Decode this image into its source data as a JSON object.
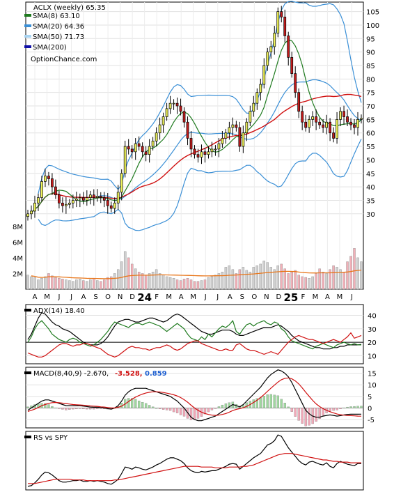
{
  "chart_data": [
    {
      "type": "candlestick",
      "panel": "price",
      "ticker": "ACLX",
      "title": "ACLX (weekly) 65.35",
      "legend": [
        {
          "label": "SMA(8) 63.10",
          "color": "#1e7a1e"
        },
        {
          "label": "SMA(20) 64.36",
          "color": "#3a8fd6"
        },
        {
          "label": "SMA(50) 71.73",
          "color": "#a8d4f2"
        },
        {
          "label": "SMA(200)",
          "color": "#1010a8"
        }
      ],
      "source": "OptionChance.com",
      "ylim": [
        24,
        108
      ],
      "yticks": [
        30,
        35,
        40,
        45,
        50,
        55,
        60,
        65,
        70,
        75,
        80,
        85,
        90,
        95,
        100,
        105
      ],
      "x_labels": [
        "A",
        "M",
        "J",
        "J",
        "A",
        "S",
        "O",
        "N",
        "D",
        "24",
        "F",
        "M",
        "A",
        "M",
        "J",
        "J",
        "A",
        "S",
        "O",
        "N",
        "D",
        "25",
        "F",
        "M",
        "A",
        "M",
        "J"
      ],
      "close": [
        30,
        31,
        34,
        36,
        42,
        44,
        43,
        40,
        37,
        34,
        33,
        33.5,
        34,
        35,
        35.5,
        36,
        35,
        36,
        37,
        36,
        36.5,
        36,
        35,
        33,
        32,
        34,
        38,
        45,
        55,
        54,
        53,
        56,
        55,
        53,
        52,
        55,
        57,
        60,
        63,
        66,
        69,
        71,
        71,
        70,
        68,
        64,
        58,
        54,
        52,
        51,
        53,
        52,
        53,
        54,
        54,
        56,
        58,
        60,
        62,
        63,
        62,
        55,
        60,
        64,
        68,
        71,
        75,
        78,
        85,
        90,
        92,
        97,
        105,
        103,
        96,
        88,
        82,
        75,
        68,
        64,
        62,
        65,
        66,
        64,
        63,
        62,
        64,
        60,
        58,
        65,
        68,
        66,
        64,
        63,
        62,
        65,
        65.35
      ],
      "volume_m": [
        1.8,
        1.6,
        1.5,
        1.2,
        1.4,
        1.6,
        2.0,
        1.7,
        1.5,
        1.4,
        1.3,
        1.2,
        1.1,
        1.0,
        1.2,
        1.3,
        1.1,
        1.0,
        1.2,
        1.4,
        1.1,
        1.0,
        1.2,
        1.5,
        1.6,
        2.0,
        2.5,
        3.5,
        4.8,
        4.0,
        3.2,
        2.6,
        2.2,
        2.0,
        1.8,
        2.0,
        2.2,
        2.5,
        2.0,
        1.8,
        1.6,
        1.5,
        1.4,
        1.2,
        1.1,
        1.3,
        1.4,
        1.2,
        1.0,
        1.0,
        1.1,
        1.2,
        1.5,
        1.6,
        1.8,
        2.0,
        2.2,
        2.8,
        3.0,
        2.5,
        2.0,
        2.5,
        2.8,
        2.4,
        2.2,
        2.8,
        3.0,
        3.2,
        3.6,
        3.4,
        2.8,
        2.5,
        3.0,
        3.2,
        2.6,
        2.0,
        2.2,
        2.4,
        1.8,
        1.6,
        1.5,
        1.4,
        1.6,
        2.0,
        2.6,
        2.2,
        2.0,
        2.5,
        3.0,
        2.8,
        2.5,
        2.2,
        3.5,
        4.2,
        5.2,
        4.0,
        3.5
      ],
      "volume_yticks": [
        "2M",
        "4M",
        "6M",
        "8M"
      ],
      "volume_ylim": [
        0,
        8.6
      ]
    },
    {
      "type": "line",
      "panel": "adx",
      "label": "ADX(14) 18.40",
      "ylim": [
        5,
        47
      ],
      "yticks": [
        10,
        20,
        30,
        40
      ],
      "series": [
        {
          "color": "#000000",
          "values": [
            22,
            26,
            32,
            38,
            42,
            41,
            38,
            35,
            33,
            32,
            30,
            29,
            28,
            26,
            24,
            22,
            20,
            19,
            18,
            18,
            18,
            19,
            21,
            24,
            28,
            32,
            35,
            36,
            37,
            37,
            36,
            35,
            35,
            36,
            37,
            38,
            38,
            37,
            36,
            35,
            36,
            38,
            40,
            41,
            40,
            38,
            36,
            34,
            32,
            30,
            28,
            27,
            26,
            26,
            27,
            28,
            29,
            29,
            29,
            28,
            26,
            25,
            25,
            26,
            27,
            28,
            29,
            30,
            31,
            31,
            31,
            32,
            33,
            32,
            30,
            28,
            25,
            23,
            21,
            20,
            19,
            18,
            17,
            16,
            16,
            15,
            15,
            15,
            16,
            16,
            17,
            17,
            18,
            18,
            18,
            18,
            18.4
          ]
        },
        {
          "color": "#1e7a1e",
          "values": [
            20,
            24,
            30,
            34,
            36,
            33,
            30,
            26,
            24,
            22,
            21,
            20,
            22,
            23,
            22,
            20,
            19,
            18,
            17,
            18,
            20,
            22,
            25,
            28,
            32,
            35,
            34,
            33,
            32,
            31,
            33,
            34,
            34,
            33,
            34,
            35,
            34,
            33,
            32,
            30,
            28,
            30,
            32,
            34,
            32,
            30,
            26,
            23,
            22,
            21,
            24,
            22,
            26,
            24,
            27,
            30,
            32,
            31,
            33,
            36,
            28,
            26,
            30,
            33,
            34,
            32,
            34,
            35,
            36,
            34,
            33,
            35,
            34,
            30,
            28,
            24,
            21,
            20,
            19,
            18,
            17,
            16,
            15,
            17,
            18,
            19,
            18,
            17,
            16,
            18,
            19,
            20,
            19,
            18,
            19,
            18,
            18
          ]
        },
        {
          "color": "#d01010",
          "values": [
            12,
            11,
            10,
            9,
            9,
            10,
            12,
            14,
            16,
            18,
            19,
            19,
            18,
            17,
            18,
            18,
            19,
            19,
            18,
            17,
            16,
            15,
            13,
            11,
            10,
            9,
            10,
            12,
            14,
            16,
            17,
            16,
            16,
            15,
            15,
            14,
            15,
            16,
            16,
            17,
            18,
            17,
            15,
            14,
            15,
            17,
            19,
            20,
            21,
            21,
            19,
            18,
            17,
            16,
            15,
            14,
            14,
            15,
            14,
            14,
            18,
            19,
            17,
            15,
            14,
            14,
            13,
            12,
            11,
            12,
            13,
            12,
            11,
            14,
            17,
            20,
            22,
            24,
            25,
            24,
            23,
            22,
            22,
            21,
            20,
            19,
            20,
            21,
            22,
            21,
            20,
            22,
            24,
            27,
            23,
            24,
            25
          ]
        }
      ]
    },
    {
      "type": "line",
      "panel": "macd",
      "label": "MACD(8,40,9) -2.670,",
      "signal_label": "-3.528,",
      "hist_label": "0.859",
      "ylim": [
        -8,
        17
      ],
      "yticks": [
        -5,
        0,
        5,
        10,
        15
      ],
      "series": [
        {
          "color": "#000000",
          "values": [
            -1,
            0,
            1,
            2,
            3,
            3.5,
            3.5,
            3,
            2.5,
            2,
            1.5,
            1,
            1,
            1,
            1,
            1,
            0.8,
            0.6,
            0.4,
            0.3,
            0.3,
            0.2,
            0,
            -0.3,
            -0.5,
            0,
            1,
            3,
            5.5,
            7,
            8,
            8.5,
            8.5,
            8.5,
            8.5,
            8,
            7.5,
            7,
            6.5,
            6,
            5.5,
            5,
            4,
            3,
            1.5,
            0,
            -2,
            -4,
            -5,
            -5.5,
            -5.5,
            -5,
            -4.5,
            -4,
            -3.5,
            -2.5,
            -1.5,
            -0.5,
            0.5,
            1.5,
            1,
            0.5,
            1.5,
            3,
            4.5,
            6,
            7.5,
            9,
            11,
            13,
            14.5,
            15.5,
            16.5,
            16,
            15,
            13.5,
            11,
            8,
            5,
            2,
            -1,
            -2.5,
            -3.5,
            -4,
            -4,
            -3.5,
            -3.2,
            -3,
            -3.2,
            -3.5,
            -3.3,
            -3,
            -2.8,
            -2.7,
            -2.7,
            -2.7,
            -2.67
          ]
        },
        {
          "color": "#d01010",
          "values": [
            -1.5,
            -1,
            -0.5,
            0.2,
            1,
            1.5,
            2,
            2.3,
            2.4,
            2.3,
            2.1,
            1.9,
            1.7,
            1.5,
            1.4,
            1.3,
            1.2,
            1.1,
            0.9,
            0.8,
            0.7,
            0.5,
            0.4,
            0.2,
            0,
            0,
            0.3,
            0.8,
            1.7,
            2.8,
            3.8,
            4.7,
            5.4,
            6,
            6.5,
            6.8,
            7,
            7,
            6.9,
            6.7,
            6.4,
            6.1,
            5.7,
            5.2,
            4.5,
            3.6,
            2.5,
            1.2,
            0,
            -1,
            -1.8,
            -2.4,
            -2.8,
            -3.1,
            -3.2,
            -3.1,
            -2.8,
            -2.4,
            -1.8,
            -1.1,
            -0.6,
            -0.3,
            0.1,
            0.7,
            1.5,
            2.4,
            3.4,
            4.5,
            5.8,
            7.2,
            8.6,
            9.9,
            11.2,
            12.2,
            12.8,
            13,
            12.6,
            11.7,
            10.4,
            8.7,
            6.8,
            5,
            3.3,
            1.8,
            0.6,
            -0.3,
            -1,
            -1.6,
            -2.1,
            -2.6,
            -2.9,
            -3.1,
            -3.2,
            -3.3,
            -3.4,
            -3.5,
            -3.528
          ]
        }
      ]
    },
    {
      "type": "line",
      "panel": "rs",
      "label": "RS vs SPY",
      "series": [
        {
          "color": "#000000",
          "values": [
            10,
            11,
            15,
            20,
            26,
            30,
            29,
            26,
            22,
            18,
            16,
            16,
            17,
            18,
            18,
            19,
            17,
            17,
            18,
            17,
            18,
            17,
            16,
            14,
            13,
            16,
            20,
            28,
            37,
            36,
            34,
            37,
            36,
            34,
            33,
            35,
            37,
            40,
            42,
            45,
            48,
            50,
            50,
            48,
            46,
            42,
            36,
            32,
            30,
            29,
            31,
            30,
            31,
            32,
            32,
            34,
            36,
            38,
            41,
            42,
            41,
            34,
            38,
            42,
            46,
            50,
            53,
            56,
            62,
            68,
            70,
            74,
            82,
            80,
            72,
            64,
            58,
            52,
            46,
            42,
            40,
            44,
            45,
            43,
            41,
            40,
            43,
            38,
            36,
            42,
            45,
            43,
            41,
            40,
            39,
            42,
            42
          ]
        },
        {
          "color": "#d01010",
          "values": [
            14,
            14,
            14,
            15,
            16,
            17,
            18,
            19,
            20,
            20,
            20,
            20,
            20,
            19,
            19,
            19,
            19,
            18,
            18,
            18,
            18,
            18,
            18,
            18,
            18,
            19,
            19,
            20,
            21,
            22,
            23,
            24,
            25,
            26,
            27,
            28,
            29,
            30,
            31,
            32,
            33,
            34,
            35,
            36,
            37,
            38,
            38,
            38,
            38,
            38,
            37,
            37,
            37,
            37,
            36,
            36,
            36,
            36,
            37,
            37,
            37,
            37,
            38,
            38,
            39,
            40,
            42,
            44,
            46,
            48,
            50,
            52,
            54,
            55,
            56,
            56,
            56,
            55,
            54,
            53,
            52,
            51,
            50,
            49,
            48,
            47,
            47,
            46,
            45,
            45,
            44,
            44,
            44,
            43,
            43,
            43,
            43
          ]
        }
      ]
    }
  ],
  "colors": {
    "up": "#eef25a",
    "down": "#c21b1b",
    "sma8": "#1e7a1e",
    "sma20": "#3a8fd6",
    "sma50": "#a8d4f2",
    "sma200": "#1010a8",
    "long_ma": "#d01010",
    "vol_up": "#d0d0d0",
    "vol_down": "#f2b0b8",
    "vol_ma": "#e8761a"
  }
}
